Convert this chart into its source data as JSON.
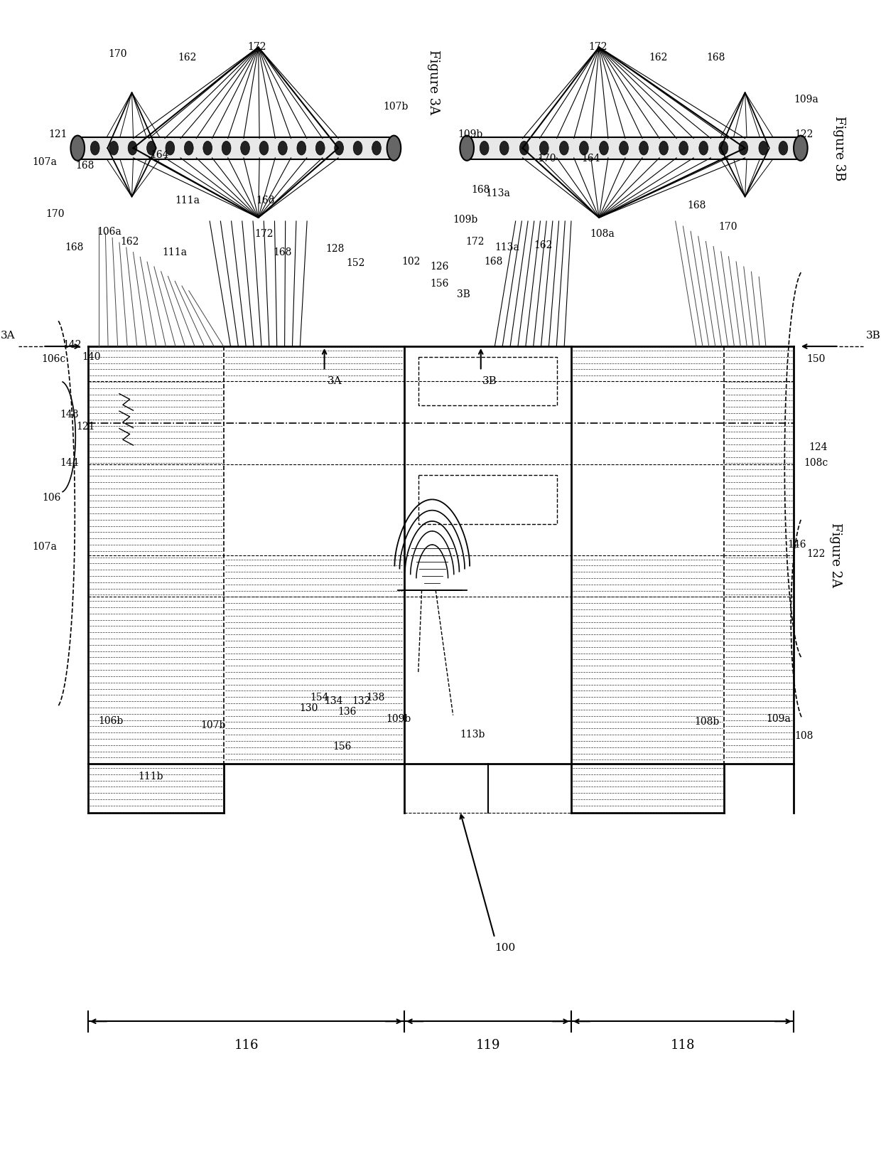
{
  "bg_color": "#ffffff",
  "line_color": "#000000",
  "fig2a_title": "Figure 2A",
  "fig3a_title": "Figure 3A",
  "fig3b_title": "Figure 3B"
}
